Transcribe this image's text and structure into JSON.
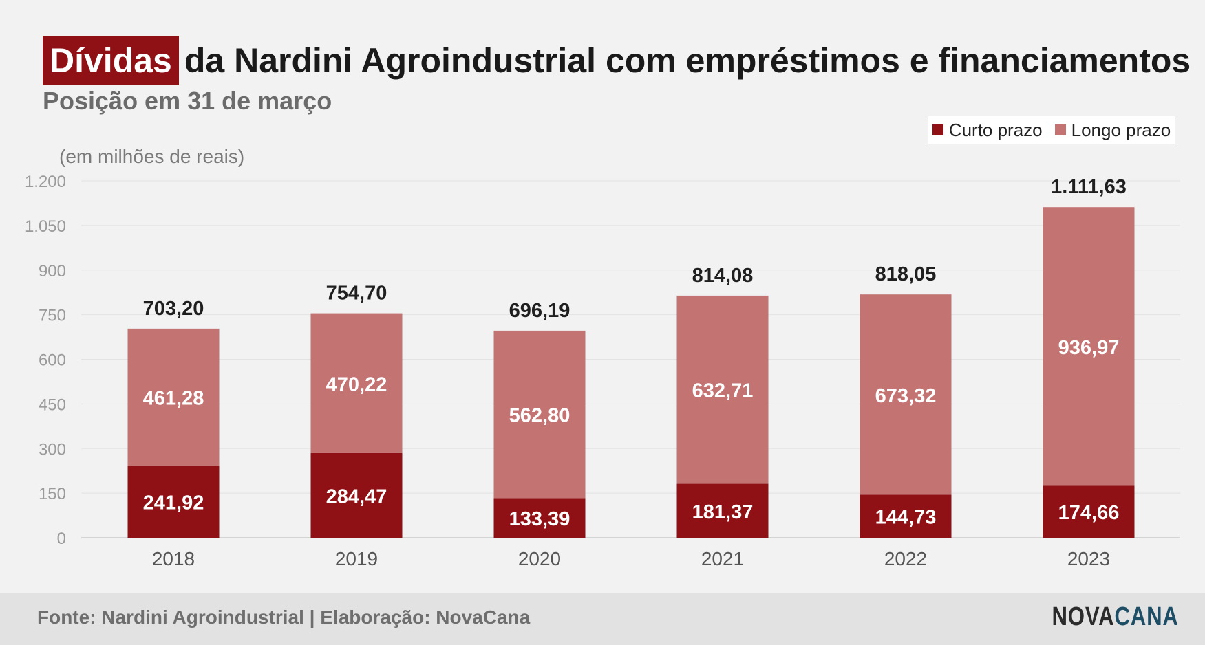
{
  "header": {
    "title_highlight": "Dívidas",
    "title_rest": "da Nardini Agroindustrial com empréstimos e financiamentos",
    "subtitle": "Posição em 31 de março"
  },
  "colors": {
    "short_term": "#8f1115",
    "long_term": "#c47373",
    "highlight_bg": "#8f1115"
  },
  "chart_data": {
    "type": "bar",
    "stacked": true,
    "categories": [
      "2018",
      "2019",
      "2020",
      "2021",
      "2022",
      "2023"
    ],
    "series": [
      {
        "name": "Curto prazo",
        "values": [
          241.92,
          284.47,
          133.39,
          181.37,
          144.73,
          174.66
        ],
        "labels": [
          "241,92",
          "284,47",
          "133,39",
          "181,37",
          "144,73",
          "174,66"
        ]
      },
      {
        "name": "Longo prazo",
        "values": [
          461.28,
          470.22,
          562.8,
          632.71,
          673.32,
          936.97
        ],
        "labels": [
          "461,28",
          "470,22",
          "562,80",
          "632,71",
          "673,32",
          "936,97"
        ]
      }
    ],
    "totals": [
      703.2,
      754.7,
      696.19,
      814.08,
      818.05,
      1111.63
    ],
    "total_labels": [
      "703,20",
      "754,70",
      "696,19",
      "814,08",
      "818,05",
      "1.111,63"
    ],
    "ylabel": "(em milhões de reais)",
    "ylim": [
      0,
      1200
    ],
    "yticks": [
      0,
      150,
      300,
      450,
      600,
      750,
      900,
      1050,
      1200
    ],
    "ytick_labels": [
      "0",
      "150",
      "300",
      "450",
      "600",
      "750",
      "900",
      "1.050",
      "1.200"
    ],
    "grid": true,
    "legend_position": "top-right"
  },
  "footer": {
    "source": "Fonte: Nardini Agroindustrial | Elaboração: NovaCana",
    "logo_part1": "NOVA",
    "logo_part2": "CANA"
  }
}
